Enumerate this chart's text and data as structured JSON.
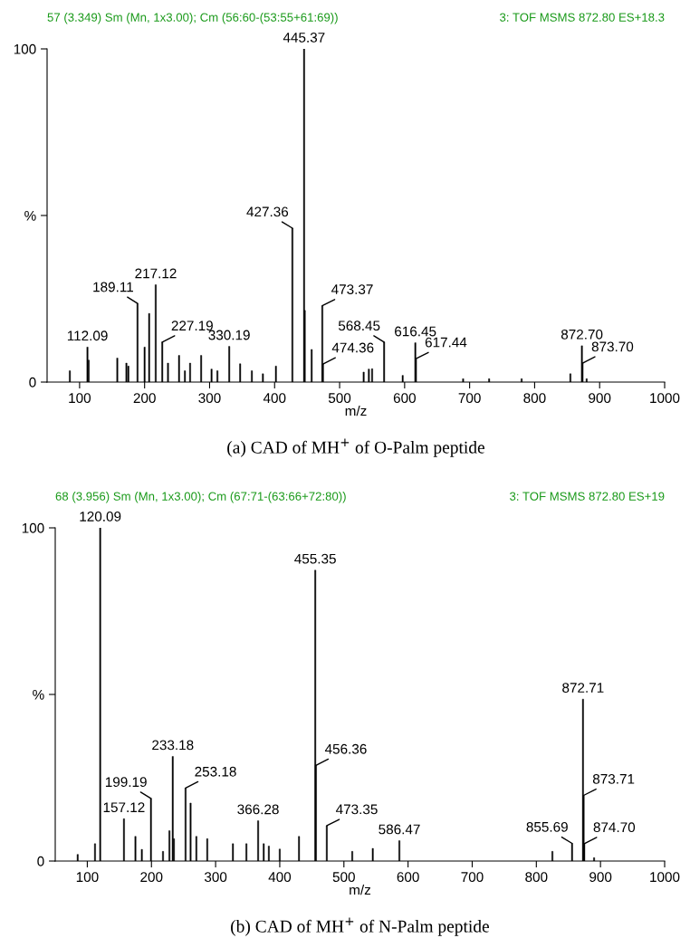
{
  "chart_data": [
    {
      "type": "bar",
      "title": "57 (3.349) Sm (Mn, 1x3.00); Cm (56:60-(53:55+61:69))",
      "subtitle": "3: TOF MSMS 872.80 ES+18.3",
      "xlabel": "m/z",
      "xlim": [
        50,
        1000
      ],
      "xticks": [
        100,
        200,
        300,
        400,
        500,
        600,
        700,
        800,
        900,
        1000
      ],
      "ylim": [
        0,
        100
      ],
      "yticks": [
        0,
        {
          "value": 50,
          "label": "%"
        },
        100
      ],
      "grid": false,
      "legend": false,
      "series": [
        {
          "color": "#000000",
          "x": [
            85,
            112.09,
            114,
            158,
            172,
            175,
            189.11,
            200,
            207,
            217.12,
            227.19,
            236,
            253,
            262,
            270,
            287,
            303,
            312,
            330.19,
            347,
            365,
            382,
            402,
            427.36,
            445.37,
            446.37,
            457,
            473.37,
            474.36,
            537,
            545,
            550,
            568.45,
            597,
            616.45,
            617.44,
            690,
            730,
            780,
            855,
            872.7,
            873.7,
            880
          ],
          "values": [
            3.4,
            10.5,
            6.6,
            7.2,
            5.7,
            4.8,
            23.6,
            10.5,
            20.6,
            29.2,
            12.0,
            5.7,
            8.0,
            3.4,
            5.7,
            8.0,
            3.9,
            3.4,
            10.7,
            5.5,
            3.4,
            2.5,
            4.8,
            46.2,
            100,
            21.5,
            9.8,
            22.9,
            5.4,
            3.0,
            3.9,
            4.0,
            12.0,
            2.0,
            11.8,
            7.0,
            1.0,
            1.0,
            1.0,
            2.5,
            10.9,
            5.7,
            1.0
          ]
        }
      ],
      "annotations": [
        {
          "text": "112.09",
          "x": 112.09,
          "y": 10.5
        },
        {
          "text": "189.11",
          "x": 189.11,
          "y": 23.6
        },
        {
          "text": "217.12",
          "x": 217.12,
          "y": 29.2
        },
        {
          "text": "227.19",
          "x": 227.19,
          "y": 12.0
        },
        {
          "text": "330.19",
          "x": 330.19,
          "y": 10.7
        },
        {
          "text": "427.36",
          "x": 427.36,
          "y": 46.2
        },
        {
          "text": "445.37",
          "x": 445.37,
          "y": 100
        },
        {
          "text": "473.37",
          "x": 473.37,
          "y": 22.9
        },
        {
          "text": "474.36",
          "x": 474.36,
          "y": 5.4
        },
        {
          "text": "568.45",
          "x": 568.45,
          "y": 12.0
        },
        {
          "text": "616.45",
          "x": 616.45,
          "y": 11.8
        },
        {
          "text": "617.44",
          "x": 617.44,
          "y": 7.0
        },
        {
          "text": "872.70",
          "x": 872.7,
          "y": 10.9
        },
        {
          "text": "873.70",
          "x": 873.7,
          "y": 5.7
        },
        "(a) CAD of MH$^{+}$ of O-Palm peptide"
      ]
    },
    {
      "type": "bar",
      "title": "68 (3.956) Sm (Mn, 1x3.00); Cm (67:71-(63:66+72:80))",
      "subtitle": "3: TOF MSMS 872.80 ES+19",
      "xlabel": "m/z",
      "xlim": [
        50,
        1000
      ],
      "xticks": [
        100,
        200,
        300,
        400,
        500,
        600,
        700,
        800,
        900,
        1000
      ],
      "ylim": [
        0,
        100
      ],
      "yticks": [
        0,
        {
          "value": 50,
          "label": "%"
        },
        100
      ],
      "grid": false,
      "legend": false,
      "series": [
        {
          "color": "#000000",
          "x": [
            85,
            112,
            120.09,
            157.12,
            175,
            185,
            199.19,
            218,
            228,
            233.18,
            235,
            253.18,
            261,
            270,
            287,
            327,
            348,
            366.28,
            375,
            383,
            400,
            430,
            455.35,
            456.36,
            473.35,
            513,
            545,
            586.47,
            825,
            855.69,
            872.71,
            873.71,
            874.7,
            890
          ],
          "values": [
            2.0,
            5.2,
            100,
            12.7,
            7.4,
            3.5,
            18.8,
            2.9,
            9.1,
            31.4,
            6.7,
            21.9,
            17.4,
            7.4,
            6.7,
            5.2,
            5.2,
            12.1,
            5.2,
            4.5,
            3.6,
            7.4,
            87.3,
            28.7,
            10.6,
            2.9,
            3.8,
            6.1,
            2.9,
            5.3,
            48.6,
            19.7,
            5.2,
            1.0
          ]
        }
      ],
      "annotations": [
        {
          "text": "120.09",
          "x": 120.09,
          "y": 100
        },
        {
          "text": "157.12",
          "x": 157.12,
          "y": 12.7
        },
        {
          "text": "199.19",
          "x": 199.19,
          "y": 18.8
        },
        {
          "text": "233.18",
          "x": 233.18,
          "y": 31.4
        },
        {
          "text": "253.18",
          "x": 253.18,
          "y": 21.9
        },
        {
          "text": "366.28",
          "x": 366.28,
          "y": 12.1
        },
        {
          "text": "455.35",
          "x": 455.35,
          "y": 87.3
        },
        {
          "text": "456.36",
          "x": 456.36,
          "y": 28.7
        },
        {
          "text": "473.35",
          "x": 473.35,
          "y": 10.6
        },
        {
          "text": "586.47",
          "x": 586.47,
          "y": 6.1
        },
        {
          "text": "855.69",
          "x": 855.69,
          "y": 5.3
        },
        {
          "text": "872.71",
          "x": 872.71,
          "y": 48.6
        },
        {
          "text": "873.71",
          "x": 873.71,
          "y": 19.7
        },
        {
          "text": "874.70",
          "x": 874.7,
          "y": 5.2
        },
        "(b) CAD of MH$^{+}$ of N-Palm peptide"
      ]
    }
  ]
}
